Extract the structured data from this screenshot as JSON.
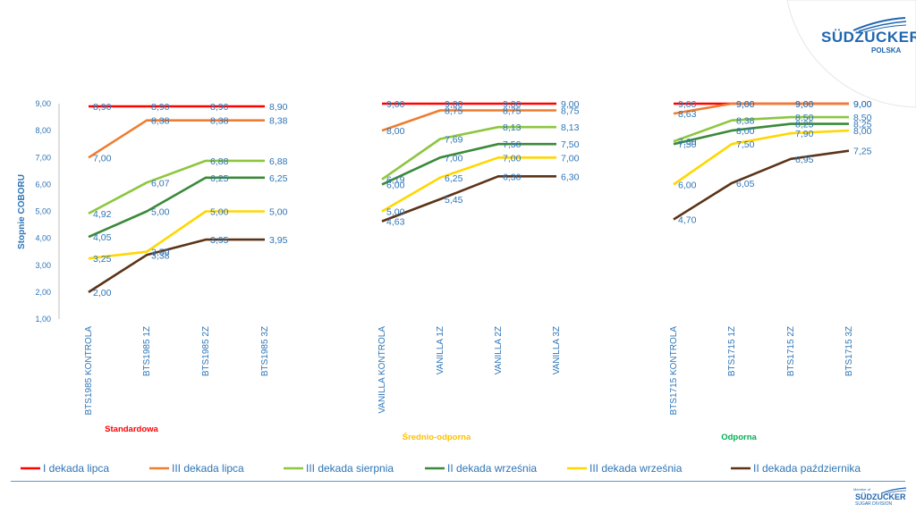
{
  "brand": {
    "name": "SÜDZUCKER",
    "sub": "POLSKA",
    "footer_name": "SÜDZUCKER",
    "footer_sub": "SUGAR DIVISION",
    "footer_tiny": "Member of"
  },
  "chart_data": {
    "type": "line",
    "ylabel": "Stopnie COBORU",
    "ylim": [
      1,
      9
    ],
    "yticks": [
      "1,00",
      "2,00",
      "3,00",
      "4,00",
      "5,00",
      "6,00",
      "7,00",
      "8,00",
      "9,00"
    ],
    "groups": [
      {
        "label": "Standardowa",
        "color": "#ff0000",
        "categories": [
          "BTS1985 KONTROLA",
          "BTS1985 1Z",
          "BTS1985 2Z",
          "BTS1985 3Z"
        ]
      },
      {
        "label": "Średnio-odporna",
        "color": "#ffc000",
        "categories": [
          "VANILLA KONTROLA",
          "VANILLA 1Z",
          "VANILLA 2Z",
          "VANILLA 3Z"
        ]
      },
      {
        "label": "Odporna",
        "color": "#00b050",
        "categories": [
          "BTS1715 KONTROLA",
          "BTS1715 1Z",
          "BTS1715 2Z",
          "BTS1715 3Z"
        ]
      }
    ],
    "series": [
      {
        "name": "I dekada lipca",
        "color": "#ff0000",
        "values": [
          [
            8.9,
            8.9,
            8.9,
            8.9
          ],
          [
            9.0,
            9.0,
            9.0,
            9.0
          ],
          [
            9.0,
            9.0,
            9.0,
            9.0
          ]
        ],
        "labels": [
          [
            "8,90",
            "8,90",
            "8,90",
            "8,90"
          ],
          [
            "9,00",
            "9,00",
            "9,00",
            "9,00"
          ],
          [
            "9,00",
            "9,00",
            "9,00",
            "9,00"
          ]
        ]
      },
      {
        "name": "III dekada lipca",
        "color": "#ed7d31",
        "values": [
          [
            7.0,
            8.38,
            8.38,
            8.38
          ],
          [
            8.0,
            8.75,
            8.75,
            8.75
          ],
          [
            8.63,
            9.0,
            9.0,
            9.0
          ]
        ],
        "labels": [
          [
            "7,00",
            "8,38",
            "8,38",
            "8,38"
          ],
          [
            "8,00",
            "8,75",
            "8,75",
            "8,75"
          ],
          [
            "8,63",
            "9,00",
            "9,00",
            "9,00"
          ]
        ]
      },
      {
        "name": "III dekada sierpnia",
        "color": "#8dc63f",
        "values": [
          [
            4.92,
            6.07,
            6.88,
            6.88
          ],
          [
            6.19,
            7.69,
            8.13,
            8.13
          ],
          [
            7.6,
            8.38,
            8.5,
            8.5
          ]
        ],
        "labels": [
          [
            "4,92",
            "6,07",
            "6,88",
            "6,88"
          ],
          [
            "6,19",
            "7,69",
            "8,13",
            "8,13"
          ],
          [
            "7,60",
            "8,38",
            "8,50",
            "8,50"
          ]
        ]
      },
      {
        "name": "II dekada września",
        "color": "#3a8a3a",
        "values": [
          [
            4.05,
            5.0,
            6.25,
            6.25
          ],
          [
            6.0,
            7.0,
            7.5,
            7.5
          ],
          [
            7.5,
            8.0,
            8.25,
            8.25
          ]
        ],
        "labels": [
          [
            "4,05",
            "5,00",
            "6,25",
            "6,25"
          ],
          [
            "6,00",
            "7,00",
            "7,50",
            "7,50"
          ],
          [
            "7,50",
            "8,00",
            "8,25",
            "8,25"
          ]
        ]
      },
      {
        "name": "III dekada września",
        "color": "#ffd700",
        "values": [
          [
            3.25,
            3.5,
            5.0,
            5.0
          ],
          [
            5.0,
            6.25,
            7.0,
            7.0
          ],
          [
            6.0,
            7.5,
            7.9,
            8.0
          ]
        ],
        "labels": [
          [
            "3,25",
            "3,50",
            "5,00",
            "5,00"
          ],
          [
            "5,00",
            "6,25",
            "7,00",
            "7,00"
          ],
          [
            "6,00",
            "7,50",
            "7,90",
            "8,00"
          ]
        ]
      },
      {
        "name": "II dekada października",
        "color": "#5c3317",
        "values": [
          [
            2.0,
            3.38,
            3.95,
            3.95
          ],
          [
            4.63,
            5.45,
            6.3,
            6.3
          ],
          [
            4.7,
            6.05,
            6.95,
            7.25
          ]
        ],
        "labels": [
          [
            "2,00",
            "3,38",
            "3,95",
            "3,95"
          ],
          [
            "4,63",
            "5,45",
            "6,30",
            "6,30"
          ],
          [
            "4,70",
            "6,05",
            "6,95",
            "7,25"
          ]
        ]
      }
    ],
    "legend": "bottom",
    "grid": false
  }
}
